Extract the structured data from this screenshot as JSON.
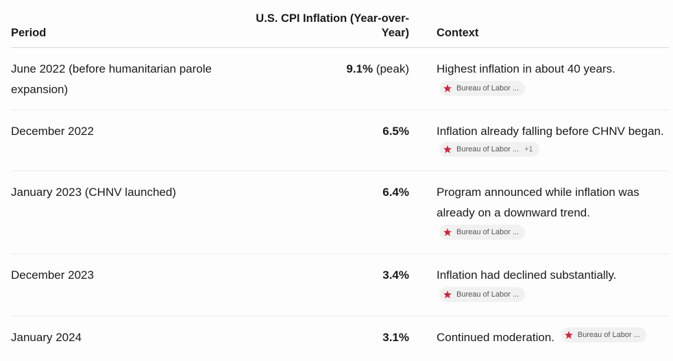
{
  "table": {
    "headers": {
      "period": "Period",
      "inflation": "U.S. CPI Inflation (Year-over-Year)",
      "context": "Context"
    },
    "rows": [
      {
        "period": "June 2022 (before humanitarian parole expansion)",
        "value": "9.1%",
        "suffix": " (peak)",
        "context": "Highest inflation in about 40 years.",
        "source": "Bureau of Labor ...",
        "source_icon": "bls-star-icon",
        "more": ""
      },
      {
        "period": "December 2022",
        "value": "6.5%",
        "suffix": "",
        "context": "Inflation already falling before CHNV began.",
        "source": "Bureau of Labor ...",
        "source_icon": "bls-star-icon",
        "more": "+1"
      },
      {
        "period": "January 2023 (CHNV launched)",
        "value": "6.4%",
        "suffix": "",
        "context": "Program announced while inflation was already on a downward trend.",
        "source": "Bureau of Labor ...",
        "source_icon": "bls-star-icon",
        "more": ""
      },
      {
        "period": "December 2023",
        "value": "3.4%",
        "suffix": "",
        "context": "Inflation had declined substantially.",
        "source": "Bureau of Labor ...",
        "source_icon": "bls-star-icon",
        "more": ""
      },
      {
        "period": "January 2024",
        "value": "3.1%",
        "suffix": "",
        "context": "Continued moderation.",
        "source": "Bureau of Labor ...",
        "source_icon": "bls-star-icon",
        "more": ""
      }
    ]
  },
  "colors": {
    "star_red": "#d62839",
    "star_blue": "#2b3a8f"
  }
}
